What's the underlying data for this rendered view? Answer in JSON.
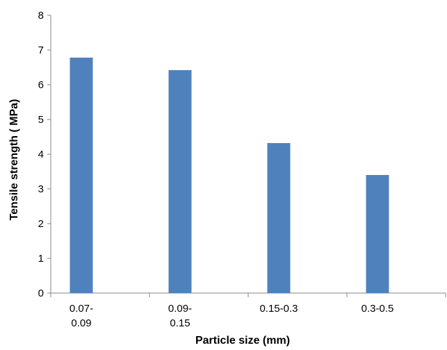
{
  "chart_data": {
    "type": "bar",
    "categories": [
      "0.07-\n0.09",
      "0.09-\n0.15",
      "0.15-0.3",
      "0.3-0.5"
    ],
    "values": [
      6.78,
      6.42,
      4.32,
      3.4
    ],
    "xlabel": "Particle size (mm)",
    "ylabel": "Tensile strength ( MPa)",
    "ylim": [
      0,
      8
    ],
    "yticks": [
      "0",
      "1",
      "2",
      "3",
      "4",
      "5",
      "6",
      "7",
      "8"
    ],
    "grid": false,
    "legend": "none",
    "bar_color": "#4f81bd",
    "axis_color": "#868686"
  }
}
